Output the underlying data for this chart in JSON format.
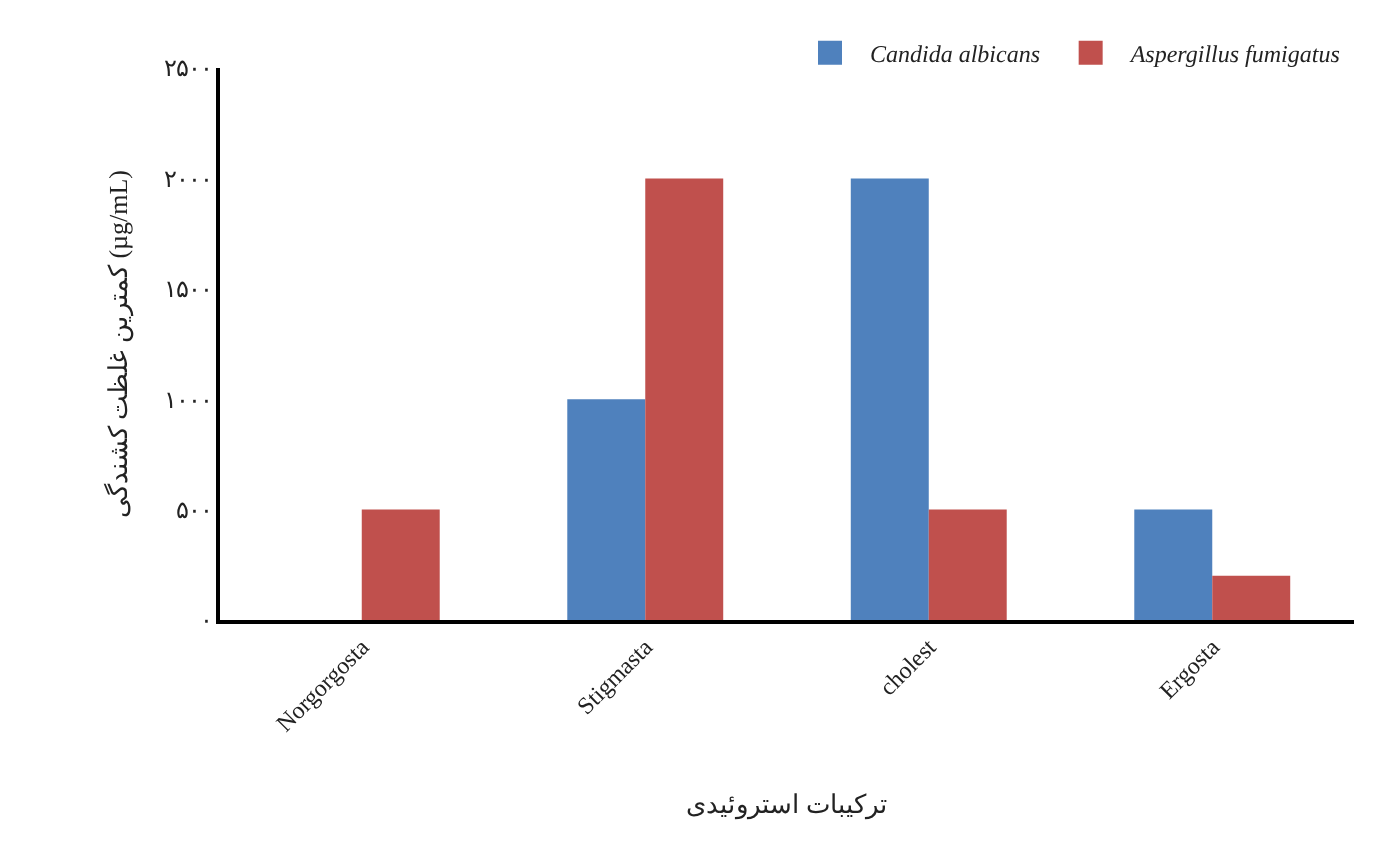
{
  "chart_data": {
    "type": "bar",
    "xlabel": "ترکیبات استروئیدی",
    "ylabel": "کمترین غلظت کشندگی (µg/mL)",
    "categories": [
      "Norgorgosta",
      "Stigmasta",
      "cholest",
      "Ergosta"
    ],
    "series": [
      {
        "name": "Candida albicans",
        "color": "#4f81bd",
        "values": [
          0,
          1000,
          2000,
          500
        ]
      },
      {
        "name": "Aspergillus fumigatus",
        "color": "#c0504d",
        "values": [
          500,
          2000,
          500,
          200
        ]
      }
    ],
    "ylim": [
      0,
      2500
    ],
    "yticks": [
      {
        "value": 0,
        "label": "۰"
      },
      {
        "value": 500,
        "label": "۵۰۰"
      },
      {
        "value": 1000,
        "label": "۱۰۰۰"
      },
      {
        "value": 1500,
        "label": "۱۵۰۰"
      },
      {
        "value": 2000,
        "label": "۲۰۰۰"
      },
      {
        "value": 2500,
        "label": "۲۵۰۰"
      }
    ],
    "grid": false,
    "legend": "top right"
  }
}
